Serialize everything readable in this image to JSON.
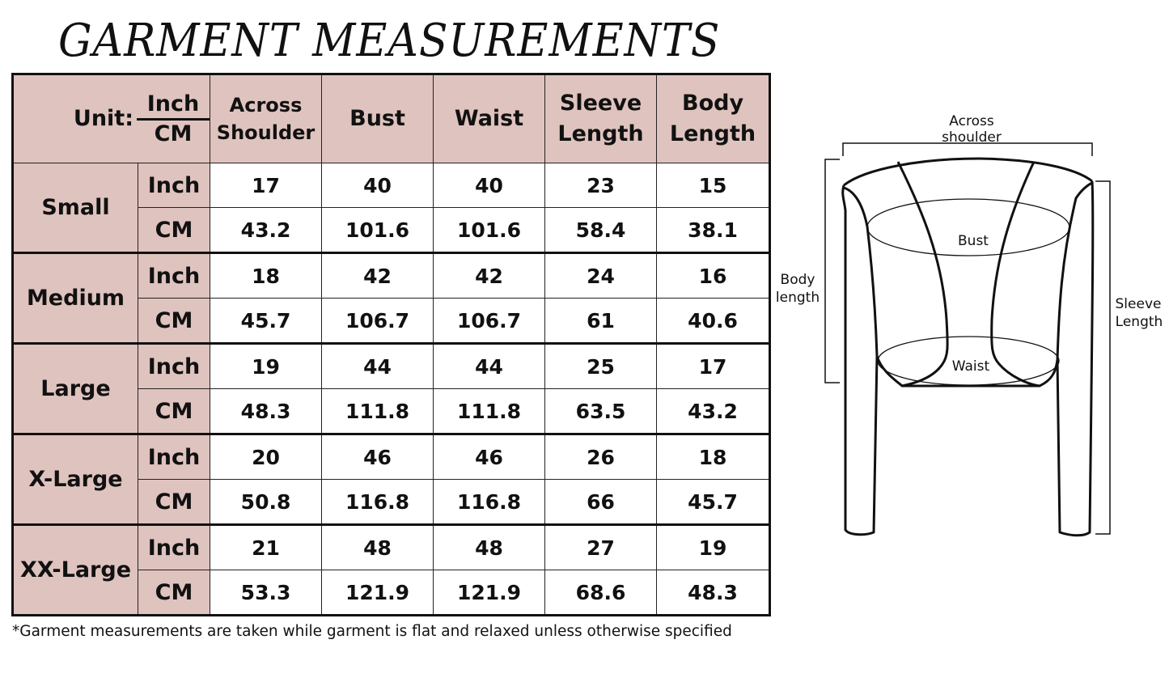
{
  "title": "GARMENT MEASUREMENTS",
  "header_color": "#dfc3bf",
  "table": {
    "unit_label": "Unit:",
    "unit_top": "Inch",
    "unit_bottom": "CM",
    "columns": [
      {
        "line1": "Across",
        "line2": "Shoulder"
      },
      {
        "line1": "Bust",
        "line2": ""
      },
      {
        "line1": "Waist",
        "line2": ""
      },
      {
        "line1": "Sleeve",
        "line2": "Length"
      },
      {
        "line1": "Body",
        "line2": "Length"
      }
    ],
    "sizes": [
      {
        "name": "Small",
        "rows": [
          {
            "unit": "Inch",
            "values": [
              "17",
              "40",
              "40",
              "23",
              "15"
            ]
          },
          {
            "unit": "CM",
            "values": [
              "43.2",
              "101.6",
              "101.6",
              "58.4",
              "38.1"
            ]
          }
        ]
      },
      {
        "name": "Medium",
        "rows": [
          {
            "unit": "Inch",
            "values": [
              "18",
              "42",
              "42",
              "24",
              "16"
            ]
          },
          {
            "unit": "CM",
            "values": [
              "45.7",
              "106.7",
              "106.7",
              "61",
              "40.6"
            ]
          }
        ]
      },
      {
        "name": "Large",
        "rows": [
          {
            "unit": "Inch",
            "values": [
              "19",
              "44",
              "44",
              "25",
              "17"
            ]
          },
          {
            "unit": "CM",
            "values": [
              "48.3",
              "111.8",
              "111.8",
              "63.5",
              "43.2"
            ]
          }
        ]
      },
      {
        "name": "X-Large",
        "rows": [
          {
            "unit": "Inch",
            "values": [
              "20",
              "46",
              "46",
              "26",
              "18"
            ]
          },
          {
            "unit": "CM",
            "values": [
              "50.8",
              "116.8",
              "116.8",
              "66",
              "45.7"
            ]
          }
        ]
      },
      {
        "name": "XX-Large",
        "rows": [
          {
            "unit": "Inch",
            "values": [
              "21",
              "48",
              "48",
              "27",
              "19"
            ]
          },
          {
            "unit": "CM",
            "values": [
              "53.3",
              "121.9",
              "121.9",
              "68.6",
              "48.3"
            ]
          }
        ]
      }
    ]
  },
  "footnote": "*Garment measurements are taken while garment is flat and relaxed unless otherwise specified",
  "diagram": {
    "across_shoulder": [
      "Across",
      "shoulder"
    ],
    "body_length": [
      "Body",
      "length"
    ],
    "sleeve_length": [
      "Sleeve",
      "Length"
    ],
    "bust": "Bust",
    "waist": "Waist"
  }
}
